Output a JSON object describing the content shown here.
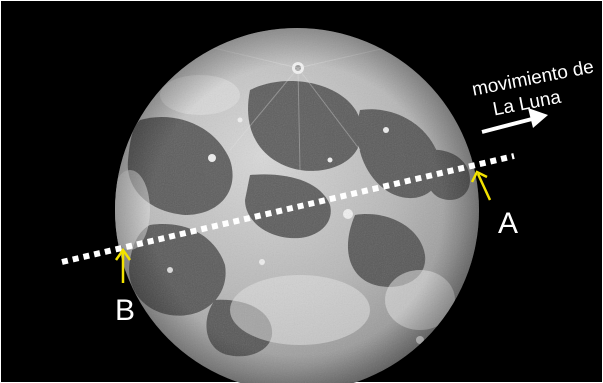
{
  "annotations": {
    "motion_label_line1": "movimiento de",
    "motion_label_line2": "La Luna",
    "point_a": "A",
    "point_b": "B"
  },
  "colors": {
    "sky": "#000000",
    "frame_border": "#ffffff",
    "chord_line": "#ffffff",
    "point_arrows": "#f2e200",
    "motion_arrow": "#ffffff",
    "label_text": "#ffffff"
  },
  "icons": {
    "motion": "arrow-right-icon",
    "points": "arrow-up-icon"
  }
}
